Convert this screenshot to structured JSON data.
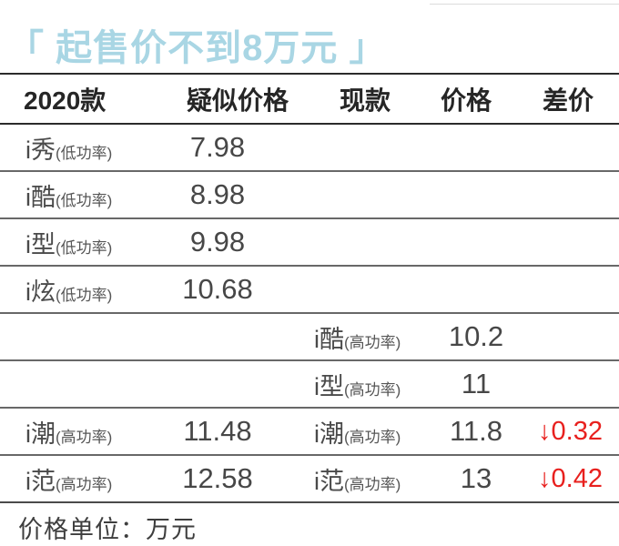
{
  "title": {
    "text": "「 起售价不到8万元 」"
  },
  "colors": {
    "title_blue": "#a9d6e4",
    "diff_red": "#e8201e",
    "line_dark": "#2b2b2b",
    "line_mid": "#686868"
  },
  "table": {
    "headers": {
      "model2020": "2020款",
      "expected_price": "疑似价格",
      "current_model": "现款",
      "price": "价格",
      "diff": "差价"
    },
    "rows": [
      {
        "name_new": "i秀",
        "sub_new": "(低功率)",
        "price_new": "7.98",
        "name_cur": "",
        "sub_cur": "",
        "price_cur": "",
        "diff": ""
      },
      {
        "name_new": "i酷",
        "sub_new": "(低功率)",
        "price_new": "8.98",
        "name_cur": "",
        "sub_cur": "",
        "price_cur": "",
        "diff": ""
      },
      {
        "name_new": "i型",
        "sub_new": "(低功率)",
        "price_new": "9.98",
        "name_cur": "",
        "sub_cur": "",
        "price_cur": "",
        "diff": ""
      },
      {
        "name_new": "i炫",
        "sub_new": "(低功率)",
        "price_new": "10.68",
        "name_cur": "",
        "sub_cur": "",
        "price_cur": "",
        "diff": ""
      },
      {
        "name_new": "",
        "sub_new": "",
        "price_new": "",
        "name_cur": "i酷",
        "sub_cur": "(高功率)",
        "price_cur": "10.2",
        "diff": ""
      },
      {
        "name_new": "",
        "sub_new": "",
        "price_new": "",
        "name_cur": "i型",
        "sub_cur": "(高功率)",
        "price_cur": "11",
        "diff": ""
      },
      {
        "name_new": "i潮",
        "sub_new": "(高功率)",
        "price_new": "11.48",
        "name_cur": "i潮",
        "sub_cur": "(高功率)",
        "price_cur": "11.8",
        "diff": "↓0.32"
      },
      {
        "name_new": "i范",
        "sub_new": "(高功率)",
        "price_new": "12.58",
        "name_cur": "i范",
        "sub_cur": "(高功率)",
        "price_cur": "13",
        "diff": "↓0.42"
      }
    ]
  },
  "footer": {
    "unit_note": "价格单位：万元"
  },
  "chart_data": {
    "type": "table",
    "title": "起售价不到8万元",
    "unit": "万元",
    "columns": [
      "2020款",
      "疑似价格",
      "现款",
      "价格",
      "差价"
    ],
    "rows": [
      [
        "i秀(低功率)",
        "7.98",
        "",
        "",
        ""
      ],
      [
        "i酷(低功率)",
        "8.98",
        "",
        "",
        ""
      ],
      [
        "i型(低功率)",
        "9.98",
        "",
        "",
        ""
      ],
      [
        "i炫(低功率)",
        "10.68",
        "",
        "",
        ""
      ],
      [
        "",
        "",
        "i酷(高功率)",
        "10.2",
        ""
      ],
      [
        "",
        "",
        "i型(高功率)",
        "11",
        ""
      ],
      [
        "i潮(高功率)",
        "11.48",
        "i潮(高功率)",
        "11.8",
        "-0.32"
      ],
      [
        "i范(高功率)",
        "12.58",
        "i范(高功率)",
        "13",
        "-0.42"
      ]
    ],
    "notes": "差价 values shown in red with down arrows; 价格单位：万元"
  }
}
